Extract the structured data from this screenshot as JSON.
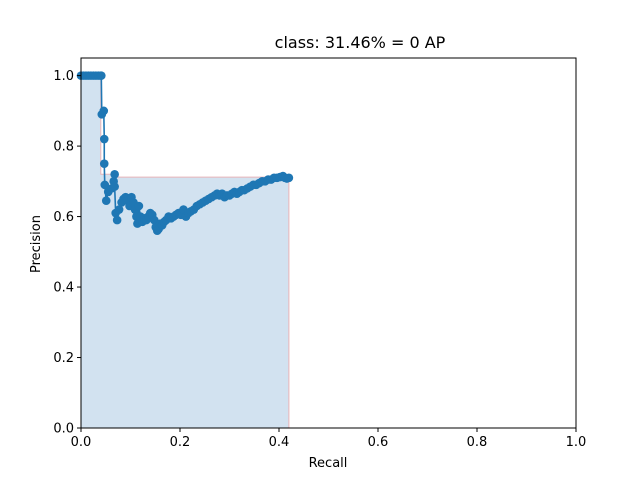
{
  "chart_data": {
    "type": "line",
    "title": "class: 31.46% = 0 AP",
    "xlabel": "Recall",
    "ylabel": "Precision",
    "xlim": [
      0.0,
      1.0
    ],
    "ylim": [
      0.0,
      1.05
    ],
    "x_ticks": [
      "0.0",
      "0.2",
      "0.4",
      "0.6",
      "0.8",
      "1.0"
    ],
    "y_ticks": [
      "0.0",
      "0.2",
      "0.4",
      "0.6",
      "0.8",
      "1.0"
    ],
    "grid": false,
    "colors": {
      "series": "#1f77b4",
      "fill": "#d2e2f0",
      "fill_edge": "#e8b4b8"
    },
    "series": [
      {
        "x": [
          0.0,
          0.005,
          0.01,
          0.015,
          0.02,
          0.025,
          0.03,
          0.035,
          0.04,
          0.041,
          0.042,
          0.046,
          0.047,
          0.047,
          0.048,
          0.051,
          0.055,
          0.062,
          0.066,
          0.068,
          0.068,
          0.07,
          0.073,
          0.077,
          0.082,
          0.086,
          0.09,
          0.094,
          0.098,
          0.102,
          0.106,
          0.109,
          0.112,
          0.114,
          0.117,
          0.12,
          0.124,
          0.128,
          0.132,
          0.136,
          0.14,
          0.144,
          0.148,
          0.151,
          0.154,
          0.157,
          0.16,
          0.164,
          0.168,
          0.172,
          0.177,
          0.182,
          0.187,
          0.192,
          0.197,
          0.202,
          0.207,
          0.212,
          0.217,
          0.222,
          0.228,
          0.234,
          0.24,
          0.246,
          0.252,
          0.258,
          0.264,
          0.27,
          0.275,
          0.28,
          0.285,
          0.29,
          0.295,
          0.3,
          0.305,
          0.31,
          0.315,
          0.32,
          0.325,
          0.33,
          0.336,
          0.342,
          0.348,
          0.354,
          0.36,
          0.366,
          0.372,
          0.378,
          0.384,
          0.39,
          0.396,
          0.402,
          0.408,
          0.412,
          0.416,
          0.42
        ],
        "y": [
          1.0,
          1.0,
          1.0,
          1.0,
          1.0,
          1.0,
          1.0,
          1.0,
          1.0,
          1.0,
          0.89,
          0.9,
          0.82,
          0.75,
          0.69,
          0.645,
          0.67,
          0.68,
          0.7,
          0.72,
          0.685,
          0.61,
          0.59,
          0.62,
          0.64,
          0.65,
          0.655,
          0.645,
          0.63,
          0.655,
          0.64,
          0.62,
          0.6,
          0.58,
          0.63,
          0.6,
          0.585,
          0.595,
          0.59,
          0.6,
          0.61,
          0.605,
          0.59,
          0.57,
          0.56,
          0.565,
          0.58,
          0.575,
          0.585,
          0.59,
          0.6,
          0.595,
          0.6,
          0.605,
          0.61,
          0.605,
          0.62,
          0.6,
          0.61,
          0.615,
          0.62,
          0.63,
          0.635,
          0.64,
          0.645,
          0.65,
          0.655,
          0.66,
          0.665,
          0.66,
          0.665,
          0.655,
          0.66,
          0.66,
          0.665,
          0.67,
          0.665,
          0.67,
          0.675,
          0.675,
          0.68,
          0.685,
          0.69,
          0.69,
          0.695,
          0.7,
          0.7,
          0.705,
          0.705,
          0.71,
          0.71,
          0.712,
          0.715,
          0.71,
          0.708,
          0.71
        ]
      }
    ],
    "fill_region": {
      "x": [
        0.0,
        0.04,
        0.04,
        0.075,
        0.075,
        0.42,
        0.42
      ],
      "y": [
        1.0,
        1.0,
        0.72,
        0.72,
        0.712,
        0.712,
        0.0
      ]
    }
  }
}
